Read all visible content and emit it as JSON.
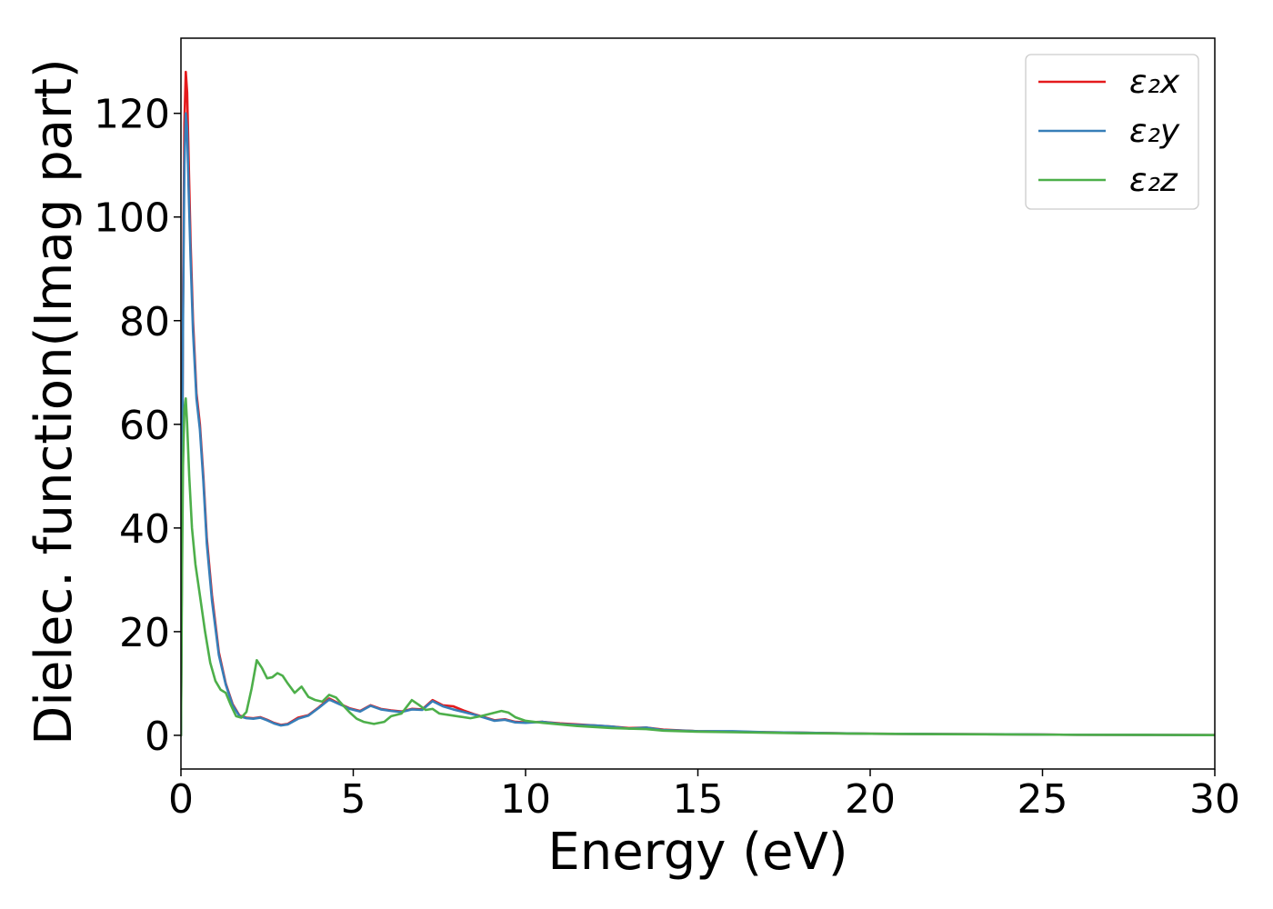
{
  "chart_data": {
    "type": "line",
    "xlabel": "Energy (eV)",
    "ylabel": "Dielec. function(Imag part)",
    "xlim": [
      0,
      30
    ],
    "ylim": [
      -6.5,
      134.5
    ],
    "xticks": [
      0,
      5,
      10,
      15,
      20,
      25,
      30
    ],
    "yticks": [
      0,
      20,
      40,
      60,
      80,
      100,
      120
    ],
    "grid": false,
    "legend_position": "top-right",
    "series": [
      {
        "name": "ε₂x",
        "color": "#e41a1c",
        "points": [
          [
            0,
            0
          ],
          [
            0.03,
            40
          ],
          [
            0.06,
            85
          ],
          [
            0.1,
            118
          ],
          [
            0.14,
            128
          ],
          [
            0.18,
            124
          ],
          [
            0.22,
            112
          ],
          [
            0.28,
            95
          ],
          [
            0.35,
            80
          ],
          [
            0.45,
            66
          ],
          [
            0.55,
            60
          ],
          [
            0.65,
            50
          ],
          [
            0.75,
            38
          ],
          [
            0.9,
            27
          ],
          [
            1.1,
            16
          ],
          [
            1.3,
            10
          ],
          [
            1.5,
            6
          ],
          [
            1.7,
            3.8
          ],
          [
            1.9,
            3.4
          ],
          [
            2.1,
            3.3
          ],
          [
            2.3,
            3.5
          ],
          [
            2.5,
            3
          ],
          [
            2.7,
            2.4
          ],
          [
            2.9,
            2
          ],
          [
            3.1,
            2.2
          ],
          [
            3.4,
            3.4
          ],
          [
            3.7,
            3.9
          ],
          [
            4.0,
            5.4
          ],
          [
            4.3,
            7.1
          ],
          [
            4.6,
            6.1
          ],
          [
            4.9,
            5.2
          ],
          [
            5.2,
            4.7
          ],
          [
            5.5,
            5.8
          ],
          [
            5.8,
            5.1
          ],
          [
            6.1,
            4.8
          ],
          [
            6.4,
            4.6
          ],
          [
            6.7,
            5.1
          ],
          [
            7.0,
            5.0
          ],
          [
            7.3,
            6.8
          ],
          [
            7.6,
            5.8
          ],
          [
            7.9,
            5.6
          ],
          [
            8.2,
            4.8
          ],
          [
            8.5,
            4.1
          ],
          [
            8.8,
            3.5
          ],
          [
            9.1,
            2.9
          ],
          [
            9.4,
            3.1
          ],
          [
            9.7,
            2.6
          ],
          [
            10.0,
            2.5
          ],
          [
            10.5,
            2.6
          ],
          [
            11.0,
            2.3
          ],
          [
            11.5,
            2.1
          ],
          [
            12.0,
            1.9
          ],
          [
            12.5,
            1.7
          ],
          [
            13.0,
            1.4
          ],
          [
            13.5,
            1.5
          ],
          [
            14.0,
            1.1
          ],
          [
            15.0,
            0.8
          ],
          [
            16.0,
            0.7
          ],
          [
            17.0,
            0.6
          ],
          [
            18.0,
            0.5
          ],
          [
            20.0,
            0.3
          ],
          [
            22.0,
            0.25
          ],
          [
            24.0,
            0.2
          ],
          [
            26.0,
            0.1
          ],
          [
            28.0,
            0.08
          ],
          [
            30.0,
            0.05
          ]
        ]
      },
      {
        "name": "ε₂y",
        "color": "#377eb8",
        "points": [
          [
            0,
            0
          ],
          [
            0.03,
            38
          ],
          [
            0.06,
            80
          ],
          [
            0.1,
            110
          ],
          [
            0.14,
            120
          ],
          [
            0.18,
            117
          ],
          [
            0.22,
            106
          ],
          [
            0.28,
            92
          ],
          [
            0.35,
            78
          ],
          [
            0.45,
            65
          ],
          [
            0.55,
            59
          ],
          [
            0.65,
            49
          ],
          [
            0.75,
            37
          ],
          [
            0.9,
            26
          ],
          [
            1.1,
            15.5
          ],
          [
            1.3,
            9.8
          ],
          [
            1.5,
            5.8
          ],
          [
            1.7,
            3.7
          ],
          [
            1.9,
            3.3
          ],
          [
            2.1,
            3.2
          ],
          [
            2.3,
            3.4
          ],
          [
            2.5,
            2.9
          ],
          [
            2.7,
            2.3
          ],
          [
            2.9,
            1.9
          ],
          [
            3.1,
            2.1
          ],
          [
            3.4,
            3.2
          ],
          [
            3.7,
            3.8
          ],
          [
            4.0,
            5.3
          ],
          [
            4.3,
            6.9
          ],
          [
            4.6,
            6
          ],
          [
            4.9,
            5.1
          ],
          [
            5.2,
            4.6
          ],
          [
            5.5,
            5.7
          ],
          [
            5.8,
            5
          ],
          [
            6.1,
            4.7
          ],
          [
            6.4,
            4.5
          ],
          [
            6.7,
            5.0
          ],
          [
            7.0,
            4.9
          ],
          [
            7.3,
            6.6
          ],
          [
            7.6,
            5.6
          ],
          [
            7.9,
            5.0
          ],
          [
            8.2,
            4.5
          ],
          [
            8.5,
            4.0
          ],
          [
            8.8,
            3.4
          ],
          [
            9.1,
            2.8
          ],
          [
            9.4,
            3.0
          ],
          [
            9.7,
            2.5
          ],
          [
            10.0,
            2.4
          ],
          [
            10.5,
            2.6
          ],
          [
            11.0,
            2.2
          ],
          [
            11.5,
            2.0
          ],
          [
            12.0,
            1.9
          ],
          [
            12.5,
            1.7
          ],
          [
            13.0,
            1.3
          ],
          [
            13.5,
            1.5
          ],
          [
            14.0,
            1.0
          ],
          [
            15.0,
            0.8
          ],
          [
            16.0,
            0.8
          ],
          [
            17.0,
            0.6
          ],
          [
            18.0,
            0.5
          ],
          [
            20.0,
            0.3
          ],
          [
            22.0,
            0.25
          ],
          [
            24.0,
            0.2
          ],
          [
            26.0,
            0.1
          ],
          [
            28.0,
            0.08
          ],
          [
            30.0,
            0.05
          ]
        ]
      },
      {
        "name": "ε₂z",
        "color": "#4daf4a",
        "points": [
          [
            0,
            0
          ],
          [
            0.03,
            30
          ],
          [
            0.06,
            52
          ],
          [
            0.1,
            63
          ],
          [
            0.14,
            65
          ],
          [
            0.18,
            60
          ],
          [
            0.24,
            50
          ],
          [
            0.32,
            40
          ],
          [
            0.42,
            33
          ],
          [
            0.55,
            27
          ],
          [
            0.7,
            20
          ],
          [
            0.85,
            14
          ],
          [
            1.0,
            10.5
          ],
          [
            1.15,
            8.8
          ],
          [
            1.3,
            8.2
          ],
          [
            1.45,
            5.8
          ],
          [
            1.6,
            3.7
          ],
          [
            1.75,
            3.4
          ],
          [
            1.9,
            4.5
          ],
          [
            2.05,
            9
          ],
          [
            2.2,
            14.5
          ],
          [
            2.35,
            13
          ],
          [
            2.5,
            11
          ],
          [
            2.65,
            11.2
          ],
          [
            2.8,
            12
          ],
          [
            2.95,
            11.5
          ],
          [
            3.1,
            10
          ],
          [
            3.3,
            8.2
          ],
          [
            3.5,
            9.4
          ],
          [
            3.7,
            7.4
          ],
          [
            3.9,
            6.8
          ],
          [
            4.1,
            6.5
          ],
          [
            4.3,
            7.8
          ],
          [
            4.5,
            7.3
          ],
          [
            4.7,
            5.8
          ],
          [
            4.9,
            4.4
          ],
          [
            5.1,
            3.2
          ],
          [
            5.3,
            2.6
          ],
          [
            5.6,
            2.2
          ],
          [
            5.9,
            2.6
          ],
          [
            6.1,
            3.7
          ],
          [
            6.4,
            4.2
          ],
          [
            6.7,
            6.8
          ],
          [
            6.9,
            5.9
          ],
          [
            7.1,
            4.9
          ],
          [
            7.3,
            5.1
          ],
          [
            7.5,
            4.2
          ],
          [
            7.8,
            3.9
          ],
          [
            8.1,
            3.6
          ],
          [
            8.4,
            3.3
          ],
          [
            8.7,
            3.7
          ],
          [
            9.0,
            4.2
          ],
          [
            9.3,
            4.7
          ],
          [
            9.5,
            4.4
          ],
          [
            9.7,
            3.5
          ],
          [
            10.0,
            2.8
          ],
          [
            10.5,
            2.4
          ],
          [
            11.0,
            2.1
          ],
          [
            11.5,
            1.8
          ],
          [
            12.0,
            1.6
          ],
          [
            12.5,
            1.4
          ],
          [
            13.0,
            1.3
          ],
          [
            13.5,
            1.2
          ],
          [
            14.0,
            0.9
          ],
          [
            15.0,
            0.7
          ],
          [
            16.0,
            0.6
          ],
          [
            17.0,
            0.5
          ],
          [
            18.0,
            0.4
          ],
          [
            20.0,
            0.3
          ],
          [
            22.0,
            0.22
          ],
          [
            24.0,
            0.18
          ],
          [
            26.0,
            0.1
          ],
          [
            28.0,
            0.08
          ],
          [
            30.0,
            0.05
          ]
        ]
      }
    ]
  }
}
